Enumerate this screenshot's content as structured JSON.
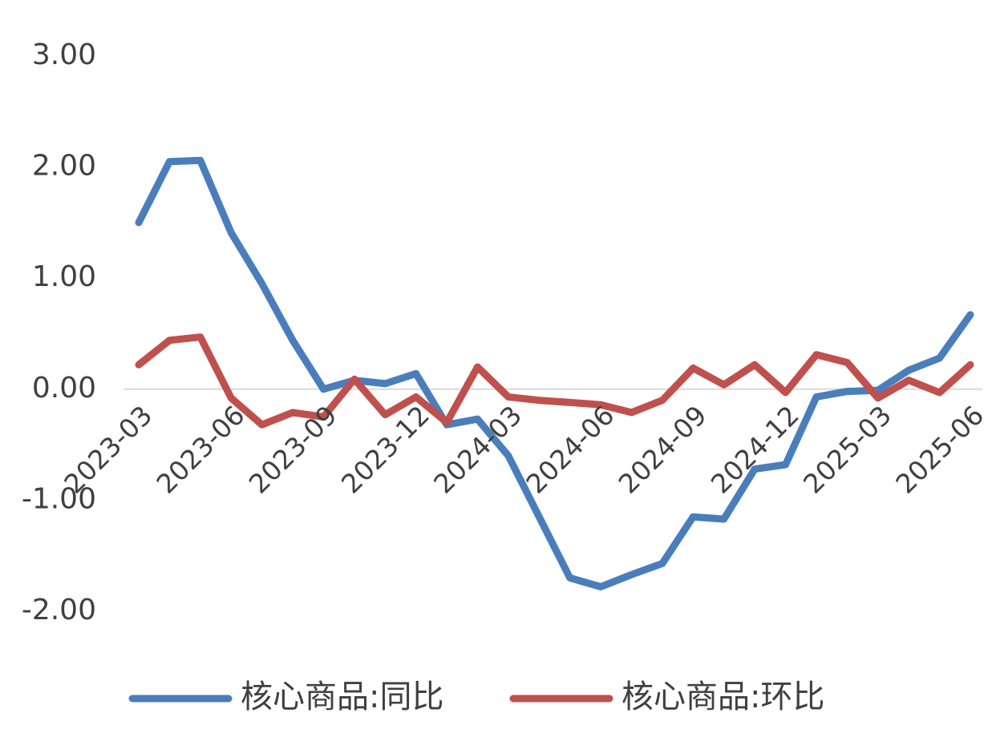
{
  "chart_data": {
    "type": "line",
    "categories": [
      "2023-03",
      null,
      null,
      "2023-06",
      null,
      null,
      "2023-09",
      null,
      null,
      "2023-12",
      null,
      null,
      "2024-03",
      null,
      null,
      "2024-06",
      null,
      null,
      "2024-09",
      null,
      null,
      "2024-12",
      null,
      null,
      "2025-03",
      null,
      null,
      "2025-06"
    ],
    "series": [
      {
        "name": "核心商品:同比",
        "color": "#4a7ebb",
        "values": [
          1.5,
          2.05,
          2.06,
          1.41,
          0.95,
          0.44,
          0.0,
          0.08,
          0.05,
          0.14,
          -0.32,
          -0.27,
          -0.6,
          -1.15,
          -1.7,
          -1.78,
          -1.67,
          -1.57,
          -1.15,
          -1.17,
          -0.72,
          -0.68,
          -0.07,
          -0.02,
          -0.01,
          0.17,
          0.28,
          0.67
        ]
      },
      {
        "name": "核心商品:环比",
        "color": "#c0504d",
        "values": [
          0.22,
          0.44,
          0.47,
          -0.08,
          -0.32,
          -0.21,
          -0.25,
          0.09,
          -0.23,
          -0.07,
          -0.3,
          0.2,
          -0.07,
          -0.1,
          -0.12,
          -0.14,
          -0.21,
          -0.1,
          0.19,
          0.04,
          0.22,
          -0.03,
          0.31,
          0.24,
          -0.08,
          0.08,
          -0.03,
          0.22
        ]
      }
    ],
    "ylim": [
      -2,
      3
    ],
    "yticks": [
      {
        "value": -2,
        "label": "-2.00"
      },
      {
        "value": -1,
        "label": "-1.00"
      },
      {
        "value": 0,
        "label": "0.00"
      },
      {
        "value": 1,
        "label": "1.00"
      },
      {
        "value": 2,
        "label": "2.00"
      },
      {
        "value": 3,
        "label": "3.00"
      }
    ],
    "legend": "bottom"
  }
}
